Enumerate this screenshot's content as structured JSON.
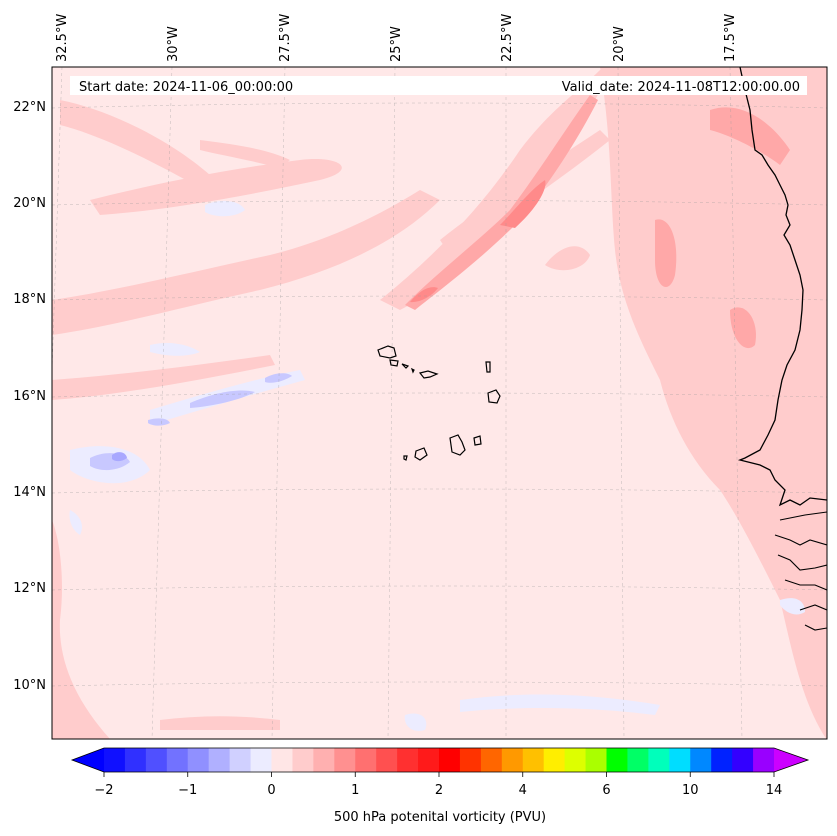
{
  "info": {
    "start": "Start date: 2024-11-06_00:00:00",
    "valid": "Valid_date: 2024-11-08T12:00:00.00"
  },
  "lon_labels": [
    "32.5°W",
    "30°W",
    "27.5°W",
    "25°W",
    "22.5°W",
    "20°W",
    "17.5°W"
  ],
  "lat_labels": [
    "22°N",
    "20°N",
    "18°N",
    "16°N",
    "14°N",
    "12°N",
    "10°N"
  ],
  "colorbar": {
    "label": "500 hPa potenital vorticity (PVU)",
    "tick_labels": [
      "−2",
      "−1",
      "0",
      "1",
      "2",
      "4",
      "6",
      "10",
      "14"
    ],
    "colors": [
      "#1010ff",
      "#3030ff",
      "#5050ff",
      "#7272ff",
      "#9090ff",
      "#b0b0ff",
      "#d0d0ff",
      "#ececff",
      "#ffe6e6",
      "#ffcccc",
      "#ffb0b0",
      "#ff9090",
      "#ff7070",
      "#ff5050",
      "#ff3030",
      "#ff1a1a",
      "#ff0000",
      "#ff3300",
      "#ff6600",
      "#ff9900",
      "#ffc000",
      "#ffee00",
      "#ddff00",
      "#aaff00",
      "#00ff00",
      "#00ff66",
      "#00ffbb",
      "#00ddff",
      "#0088ff",
      "#0022ff",
      "#3300ff",
      "#9900ff"
    ],
    "under_color": "#0000ff",
    "over_color": "#cc00ff"
  },
  "colors": {
    "background_field": "#ffe8e8",
    "light_red": "#ffcccc",
    "medium_red": "#ffa8a8",
    "strong_red": "#ff8a8a",
    "light_blue": "#ececff",
    "medium_blue": "#c8c8ff",
    "strong_blue": "#a8a8ff",
    "coast": "#000000"
  }
}
